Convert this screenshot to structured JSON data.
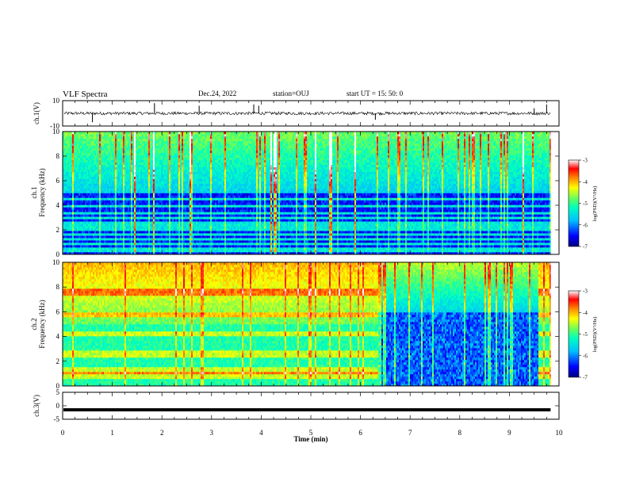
{
  "header": {
    "title": "VLF Spectra",
    "date": "Dec.24, 2022",
    "station": "station=OUJ",
    "start": "start  UT  =   15: 50: 0"
  },
  "chart_data": [
    {
      "type": "line",
      "panel": "ch1-waveform",
      "ylabel": "ch.1(V)",
      "ylim": [
        -10,
        10
      ],
      "yticks": [
        "10",
        "-10"
      ],
      "xlim": [
        0,
        10
      ],
      "baseline": 0,
      "spikes": [
        {
          "t": 0.6,
          "v": -7
        },
        {
          "t": 1.85,
          "v": 8
        },
        {
          "t": 2.75,
          "v": 6
        },
        {
          "t": 3.85,
          "v": 7
        },
        {
          "t": 3.95,
          "v": 6
        },
        {
          "t": 6.3,
          "v": -5
        },
        {
          "t": 9.5,
          "v": 4
        },
        {
          "t": 9.75,
          "v": 7
        }
      ]
    },
    {
      "type": "heatmap",
      "panel": "ch1-spectrogram",
      "ylabel": "ch.1",
      "ylabel2": "Frequency (kHz)",
      "xlim": [
        0,
        10
      ],
      "ylim": [
        0,
        10
      ],
      "yticks": [
        "0",
        "2",
        "4",
        "6",
        "8",
        "10"
      ],
      "data_end_min": 9.83,
      "colorbar": {
        "label": "log(PSD)(V²/Hz)",
        "range": [
          -7,
          -3
        ],
        "ticks": [
          "-3",
          "-4",
          "-5",
          "-6",
          "-7"
        ]
      }
    },
    {
      "type": "heatmap",
      "panel": "ch2-spectrogram",
      "ylabel": "ch.2",
      "ylabel2": "Frequency (kHz)",
      "xlim": [
        0,
        10
      ],
      "ylim": [
        0,
        10
      ],
      "yticks": [
        "0",
        "2",
        "4",
        "6",
        "8",
        "10"
      ],
      "data_end_min": 9.83,
      "regime_change_min": 6.35,
      "colorbar": {
        "label": "log(PSD)(V²/Hz)",
        "range": [
          -7,
          -3
        ],
        "ticks": [
          "-3",
          "-4",
          "-5",
          "-6",
          "-7"
        ]
      }
    },
    {
      "type": "line",
      "panel": "ch3-waveform",
      "ylabel": "ch.3(V)",
      "ylim": [
        -5,
        5
      ],
      "yticks": [
        "5",
        "0",
        "-5"
      ],
      "xlim": [
        0,
        10
      ],
      "level": -1.5,
      "xlabel": "Time  (min)",
      "xticks": [
        "0",
        "1",
        "2",
        "3",
        "4",
        "5",
        "6",
        "7",
        "8",
        "9",
        "10"
      ]
    }
  ],
  "colors": {
    "axis": "#000000",
    "colormap": [
      "#000080",
      "#0000ff",
      "#00c0ff",
      "#00ffc0",
      "#60ff60",
      "#ffff00",
      "#ff8000",
      "#ff0000",
      "#ffffff"
    ]
  }
}
